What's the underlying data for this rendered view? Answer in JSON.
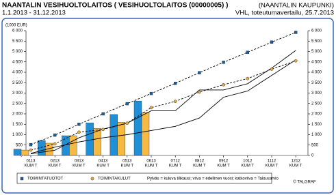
{
  "chart_data": {
    "type": "bar",
    "title": "NAANTALIN VESIHUOLTOLAITOS ( VESIHUOLTOLAITOS (00000005) )",
    "period": "1.1.2013 - 31.12.2013",
    "organisation": "(NAANTALIN KAUPUNKI)",
    "report": "VHL, toteutumavertailu, 25.7.2013",
    "y_label": "(1000 EUR)",
    "categories": [
      "0113",
      "0213",
      "0313",
      "0413",
      "0513",
      "0613",
      "0712",
      "0812",
      "0912",
      "1012",
      "1112",
      "1212"
    ],
    "category_suffix": "KUM T",
    "ylim": [
      0,
      6000
    ],
    "yticks": [
      0,
      500,
      {
        "value": 1000,
        "label": "1 000"
      },
      {
        "value": 1500,
        "label": "1 500"
      },
      {
        "value": 2000,
        "label": "2 000"
      },
      {
        "value": 2500,
        "label": "2 500"
      },
      {
        "value": 3000,
        "label": "3 000"
      },
      {
        "value": 3500,
        "label": "3 500"
      },
      {
        "value": 4000,
        "label": "4 000"
      },
      {
        "value": 4500,
        "label": "4 500"
      },
      {
        "value": 5000,
        "label": "5 000"
      },
      {
        "value": 5500,
        "label": "5 500"
      },
      {
        "value": 6000,
        "label": "6 000"
      }
    ],
    "y2lim": [
      0,
      6000
    ],
    "y2ticks": [
      0,
      500,
      {
        "value": 1000,
        "label": "1 000"
      },
      {
        "value": 1500,
        "label": "1 500"
      },
      {
        "value": 2000,
        "label": "2 000"
      },
      {
        "value": 2500,
        "label": "2 500"
      },
      {
        "value": 3000,
        "label": "3 000"
      },
      {
        "value": 3500,
        "label": "3 500"
      },
      {
        "value": 4000,
        "label": "4 000"
      },
      {
        "value": 4500,
        "label": "4 500"
      },
      {
        "value": 5000,
        "label": "5 000"
      },
      {
        "value": 5500,
        "label": "5 500"
      },
      {
        "value": 6000,
        "label": "6 000"
      }
    ],
    "grid": false,
    "series": [
      {
        "name": "TOIMINTATUOTOT",
        "color": "#1f8fd8",
        "marker": "square",
        "marker_color": "#1d5f9e",
        "values": [
          300,
          720,
          950,
          1570,
          1970,
          2620,
          null,
          null,
          null,
          null,
          null,
          null
        ],
        "budget": [
          520,
          980,
          1500,
          2000,
          2490,
          2980,
          3470,
          3980,
          4480,
          4960,
          5450,
          5920
        ],
        "previous": [
          80,
          250,
          850,
          1270,
          1550,
          2150,
          2150,
          3150,
          3150,
          3450,
          4200,
          5050
        ]
      },
      {
        "name": "TOIMINTAKULUT",
        "color": "#f6b941",
        "marker": "circle",
        "marker_color": "#e8a93a",
        "values": [
          260,
          590,
          950,
          1300,
          1600,
          2070,
          null,
          null,
          null,
          null,
          null,
          null
        ],
        "budget": [
          260,
          560,
          1120,
          1250,
          1550,
          2300,
          2600,
          3050,
          3400,
          3700,
          4150,
          4550
        ],
        "previous": [
          100,
          400,
          650,
          850,
          1000,
          1200,
          1400,
          1800,
          2800,
          3100,
          3850,
          4600
        ]
      }
    ],
    "note": "Pylväs = kuluva tilikausi; viiva = edellinen vuosi; katkoviiva = Talousarvio",
    "copyright": "© TALGRAF"
  }
}
